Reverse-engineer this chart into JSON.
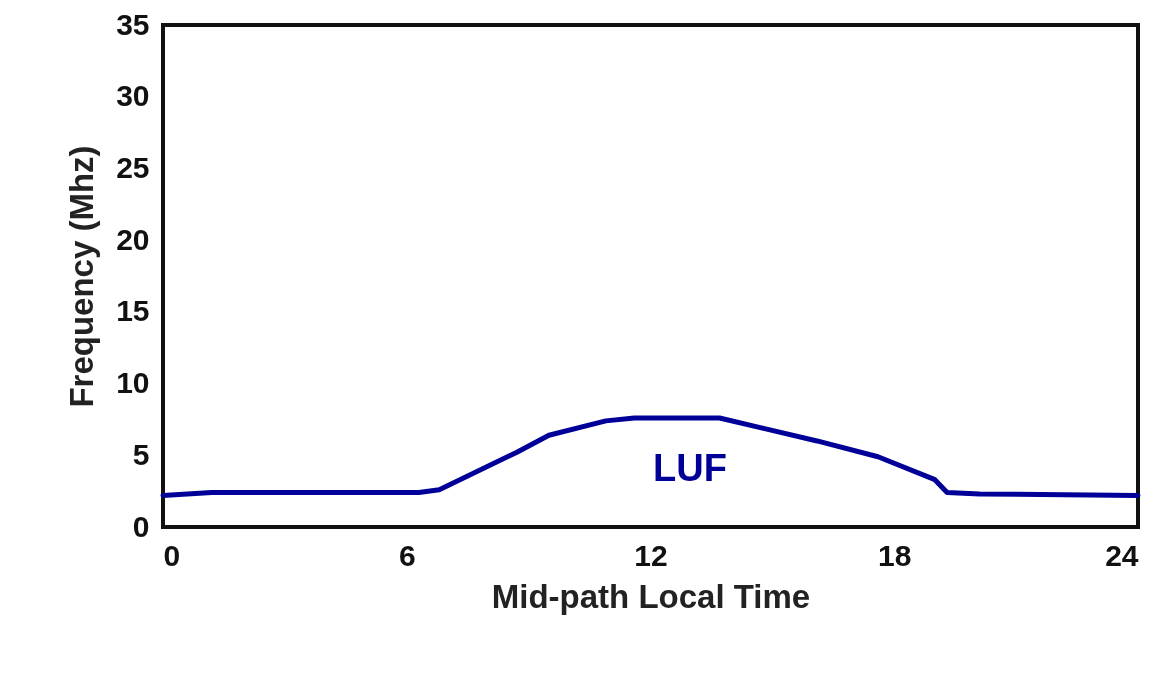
{
  "chart_data": {
    "type": "line",
    "xlabel": "Mid-path Local Time",
    "ylabel": "Frequency (Mhz)",
    "x": [
      0,
      1.2,
      6.3,
      6.8,
      8.7,
      9.5,
      10.9,
      11.6,
      13.7,
      16.1,
      17.6,
      19.0,
      19.3,
      20.1,
      24
    ],
    "series": [
      {
        "color": "#000099",
        "values": [
          2.2,
          2.4,
          2.4,
          2.6,
          5.2,
          6.4,
          7.4,
          7.6,
          7.6,
          6.0,
          4.9,
          3.3,
          2.4,
          2.3,
          2.2
        ]
      }
    ],
    "annotations": [
      "LUF"
    ],
    "xlim": [
      0,
      24
    ],
    "xticks": [
      0,
      6,
      12,
      18,
      24
    ],
    "ylim": [
      0,
      35
    ],
    "yticks": [
      0,
      5,
      10,
      15,
      20,
      25,
      30,
      35
    ],
    "grid": false,
    "marker": "none",
    "line_style": "solid"
  }
}
